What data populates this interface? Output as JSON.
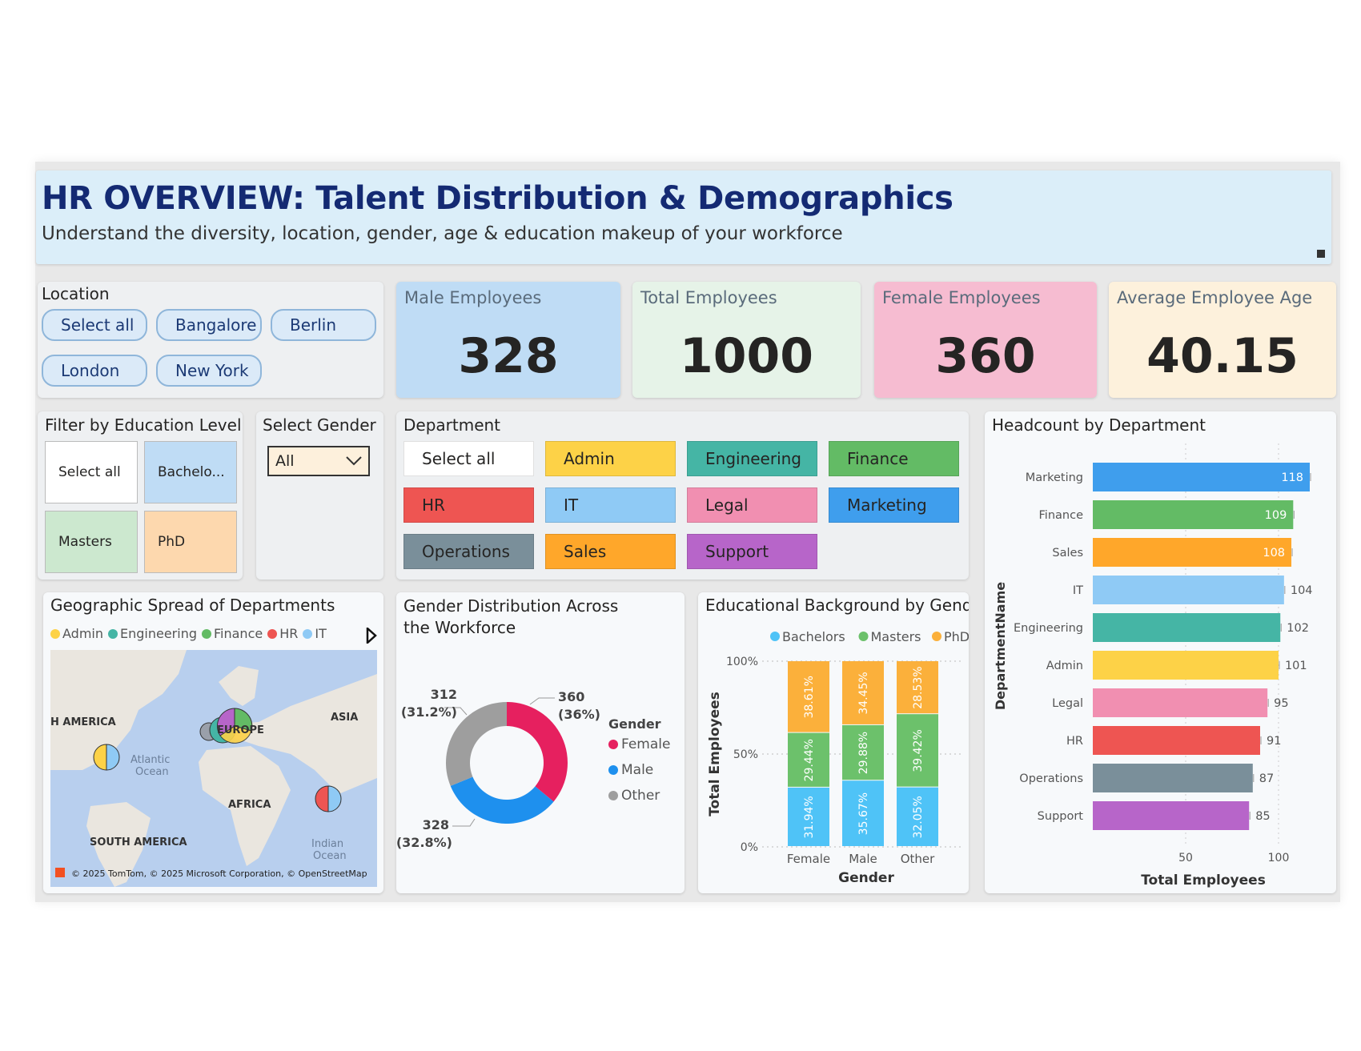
{
  "header": {
    "title": "HR OVERVIEW: Talent Distribution & Demographics",
    "subtitle": "Understand the diversity, location, gender, age & education makeup of your workforce"
  },
  "location": {
    "title": "Location",
    "options": [
      "Select all",
      "Bangalore",
      "Berlin",
      "London",
      "New York"
    ]
  },
  "kpis": {
    "male": {
      "label": "Male Employees",
      "value": "328",
      "color": "#bfdcf5"
    },
    "total": {
      "label": "Total Employees",
      "value": "1000",
      "color": "#e6f3e8"
    },
    "female": {
      "label": "Female Employees",
      "value": "360",
      "color": "#f6bcd1"
    },
    "age": {
      "label": "Average Employee Age",
      "value": "40.15",
      "color": "#fdf1dc"
    }
  },
  "education_filter": {
    "title": "Filter by Education Level",
    "options": [
      "Select all",
      "Bachelo...",
      "Masters",
      "PhD"
    ]
  },
  "gender_filter": {
    "title": "Select Gender",
    "value": "All"
  },
  "department_filter": {
    "title": "Department",
    "options": [
      {
        "label": "Select all",
        "color": "#ffffff"
      },
      {
        "label": "Admin",
        "color": "#fdd247"
      },
      {
        "label": "Engineering",
        "color": "#45b5a5"
      },
      {
        "label": "Finance",
        "color": "#63bb65"
      },
      {
        "label": "HR",
        "color": "#ee5552"
      },
      {
        "label": "IT",
        "color": "#8fcaf5"
      },
      {
        "label": "Legal",
        "color": "#f18fb1"
      },
      {
        "label": "Marketing",
        "color": "#3f9eed"
      },
      {
        "label": "Operations",
        "color": "#7a8f9a"
      },
      {
        "label": "Sales",
        "color": "#ffa72a"
      },
      {
        "label": "Support",
        "color": "#b765c9"
      }
    ]
  },
  "map": {
    "title": "Geographic Spread of Departments",
    "legend": [
      {
        "name": "Admin",
        "color": "#fdd247"
      },
      {
        "name": "Engineering",
        "color": "#45b5a5"
      },
      {
        "name": "Finance",
        "color": "#63bb65"
      },
      {
        "name": "HR",
        "color": "#ee5552"
      },
      {
        "name": "IT",
        "color": "#8fcaf5"
      }
    ],
    "labels": {
      "north_america": "H AMERICA",
      "europe": "EUROPE",
      "asia": "ASIA",
      "atlantic": "Atlantic",
      "ocean1": "Ocean",
      "africa": "AFRICA",
      "south_america": "SOUTH AMERICA",
      "indian": "Indian",
      "ocean2": "Ocean"
    },
    "copyright": "© 2025 TomTom, © 2025 Microsoft Corporation, © OpenStreetMap"
  },
  "chart_data": [
    {
      "type": "pie",
      "title": "Gender Distribution Across the Workforce",
      "legend_title": "Gender",
      "categories": [
        "Female",
        "Male",
        "Other"
      ],
      "values": [
        360,
        328,
        312
      ],
      "percent_labels": [
        "(36%)",
        "(32.8%)",
        "(31.2%)"
      ],
      "colors": [
        "#e6205f",
        "#1e90ee",
        "#9e9e9e"
      ],
      "donut": true
    },
    {
      "type": "bar",
      "stacked_percent": true,
      "title": "Educational Background by Gender",
      "categories": [
        "Female",
        "Male",
        "Other"
      ],
      "xlabel": "Gender",
      "ylabel": "Total Employees",
      "yticks": [
        "0%",
        "50%",
        "100%"
      ],
      "series": [
        {
          "name": "Bachelors",
          "color": "#4fc3f7",
          "values": [
            31.94,
            35.67,
            32.05
          ],
          "labels": [
            "31.94%",
            "35.67%",
            "32.05%"
          ]
        },
        {
          "name": "Masters",
          "color": "#6cc16b",
          "values": [
            29.44,
            29.88,
            39.42
          ],
          "labels": [
            "29.44%",
            "29.88%",
            "39.42%"
          ]
        },
        {
          "name": "PhD",
          "color": "#fbb03b",
          "values": [
            38.61,
            34.45,
            28.53
          ],
          "labels": [
            "38.61%",
            "34.45%",
            "28.53%"
          ]
        }
      ]
    },
    {
      "type": "bar",
      "orientation": "horizontal",
      "title": "Headcount by Department",
      "xlabel": "Total Employees",
      "ylabel": "DepartmentName",
      "xticks": [
        50,
        100
      ],
      "xlim": [
        0,
        118
      ],
      "categories": [
        "Marketing",
        "Finance",
        "Sales",
        "IT",
        "Engineering",
        "Admin",
        "Legal",
        "HR",
        "Operations",
        "Support"
      ],
      "values": [
        118,
        109,
        108,
        104,
        102,
        101,
        95,
        91,
        87,
        85
      ],
      "colors": [
        "#3f9eed",
        "#63bb65",
        "#ffa72a",
        "#8fcaf5",
        "#45b5a5",
        "#fdd247",
        "#f18fb1",
        "#ee5552",
        "#7a8f9a",
        "#b765c9"
      ]
    }
  ]
}
